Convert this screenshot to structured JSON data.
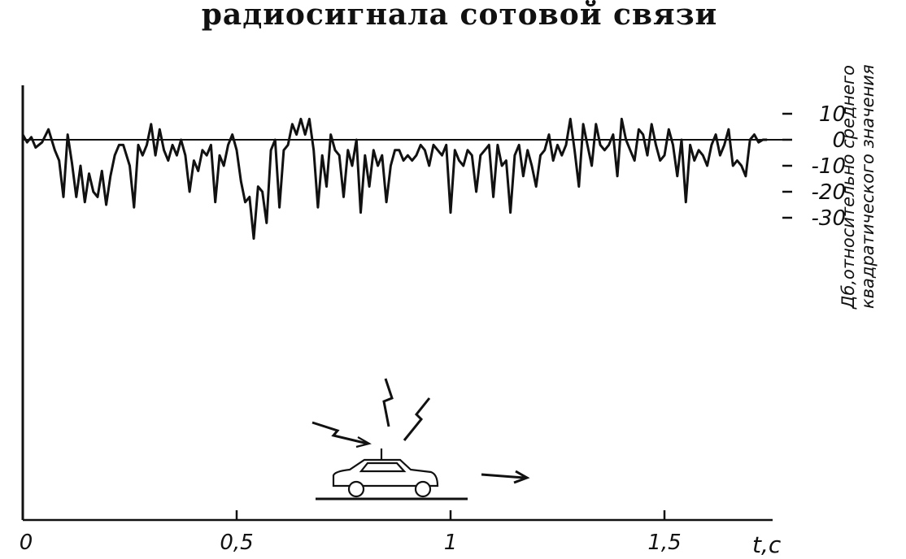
{
  "chart_data": {
    "type": "line",
    "title": "радиосигнала сотовой связи",
    "xlabel": "t,с",
    "ylabel_lines": [
      "Дб,относительно среднего",
      "квадратического значения"
    ],
    "x_ticks": [
      "0",
      "0,5",
      "1",
      "1,5"
    ],
    "x_tick_values": [
      0,
      0.5,
      1,
      1.5
    ],
    "y_ticks": [
      "10",
      "0",
      "-10",
      "-20",
      "-30"
    ],
    "y_tick_values": [
      10,
      0,
      -10,
      -20,
      -30
    ],
    "xlim": [
      0,
      1.75
    ],
    "ylim": [
      -35,
      14
    ],
    "grid": false,
    "series": [
      {
        "values_x": [
          0.0,
          0.01,
          0.02,
          0.03,
          0.045,
          0.06,
          0.075,
          0.085,
          0.095,
          0.105,
          0.115,
          0.125,
          0.135,
          0.145,
          0.155,
          0.165,
          0.175,
          0.185,
          0.195,
          0.205,
          0.215,
          0.225,
          0.235,
          0.25,
          0.26,
          0.27,
          0.28,
          0.29,
          0.3,
          0.31,
          0.32,
          0.33,
          0.34,
          0.35,
          0.36,
          0.37,
          0.38,
          0.39,
          0.4,
          0.41,
          0.42,
          0.43,
          0.44,
          0.45,
          0.46,
          0.47,
          0.48,
          0.49,
          0.5,
          0.51,
          0.52,
          0.53,
          0.54,
          0.55,
          0.56,
          0.57,
          0.58,
          0.59,
          0.6,
          0.61,
          0.62,
          0.63,
          0.64,
          0.65,
          0.66,
          0.67,
          0.68,
          0.69,
          0.7,
          0.71,
          0.72,
          0.73,
          0.74,
          0.75,
          0.76,
          0.77,
          0.78,
          0.79,
          0.8,
          0.81,
          0.82,
          0.83,
          0.84,
          0.85,
          0.86,
          0.87,
          0.88,
          0.89,
          0.9,
          0.91,
          0.92,
          0.93,
          0.94,
          0.95,
          0.96,
          0.97,
          0.98,
          0.99,
          1.0,
          1.01,
          1.02,
          1.03,
          1.04,
          1.05,
          1.06,
          1.07,
          1.08,
          1.09,
          1.1,
          1.11,
          1.12,
          1.13,
          1.14,
          1.15,
          1.16,
          1.17,
          1.18,
          1.19,
          1.2,
          1.21,
          1.22,
          1.23,
          1.24,
          1.25,
          1.26,
          1.27,
          1.28,
          1.29,
          1.3,
          1.31,
          1.32,
          1.33,
          1.34,
          1.35,
          1.36,
          1.37,
          1.38,
          1.39,
          1.4,
          1.41,
          1.42,
          1.43,
          1.44,
          1.45,
          1.46,
          1.47,
          1.48,
          1.49,
          1.5,
          1.51,
          1.52,
          1.53,
          1.54,
          1.55,
          1.56,
          1.57,
          1.58,
          1.59,
          1.6,
          1.61,
          1.62,
          1.63,
          1.64,
          1.65,
          1.66,
          1.67,
          1.68,
          1.69,
          1.7,
          1.71,
          1.72,
          1.73,
          1.74
        ],
        "values_y": [
          2,
          -1,
          1,
          -3,
          -1,
          4,
          -4,
          -8,
          -22,
          2,
          -9,
          -22,
          -10,
          -24,
          -13,
          -20,
          -22,
          -12,
          -25,
          -14,
          -6,
          -2,
          -2,
          -10,
          -26,
          -2,
          -6,
          -2,
          6,
          -6,
          4,
          -4,
          -8,
          -2,
          -6,
          0,
          -6,
          -20,
          -8,
          -12,
          -4,
          -6,
          -2,
          -24,
          -6,
          -10,
          -2,
          2,
          -4,
          -16,
          -24,
          -22,
          -38,
          -18,
          -20,
          -32,
          -4,
          0,
          -26,
          -4,
          -2,
          6,
          2,
          8,
          2,
          8,
          -4,
          -26,
          -6,
          -18,
          2,
          -4,
          -6,
          -22,
          -4,
          -10,
          0,
          -28,
          -6,
          -18,
          -4,
          -10,
          -6,
          -24,
          -10,
          -4,
          -4,
          -8,
          -6,
          -8,
          -6,
          -2,
          -4,
          -10,
          -2,
          -4,
          -6,
          -2,
          -28,
          -4,
          -8,
          -10,
          -4,
          -6,
          -20,
          -6,
          -4,
          -2,
          -22,
          -2,
          -10,
          -8,
          -28,
          -6,
          -2,
          -14,
          -4,
          -10,
          -18,
          -6,
          -4,
          2,
          -8,
          -2,
          -6,
          -2,
          8,
          -4,
          -18,
          6,
          -2,
          -10,
          6,
          -2,
          -4,
          -2,
          2,
          -14,
          8,
          0,
          -4,
          -8,
          4,
          2,
          -6,
          6,
          -2,
          -8,
          -6,
          4,
          -2,
          -14,
          0,
          -24,
          -2,
          -8,
          -4,
          -6,
          -10,
          -2,
          2,
          -6,
          -2,
          4,
          -10,
          -8,
          -10,
          -14,
          0,
          2,
          -1,
          0,
          0
        ]
      }
    ]
  }
}
